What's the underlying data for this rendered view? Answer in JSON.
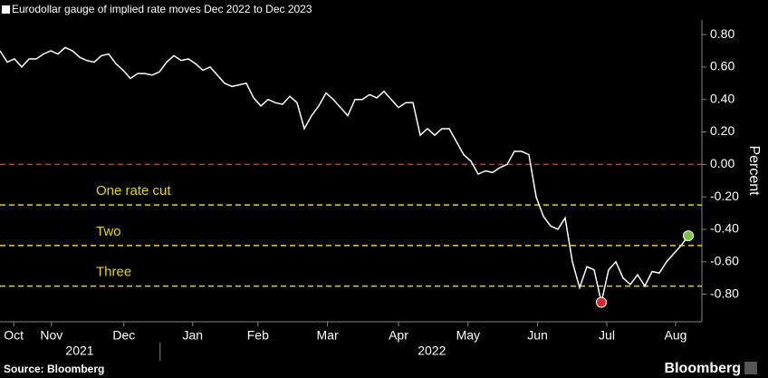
{
  "chart_data": {
    "type": "line",
    "title": "Eurodollar gauge of implied rate moves Dec 2022 to Dec 2023",
    "y_label": "Percent",
    "source": "Source: Bloomberg",
    "brand": "Bloomberg",
    "color": "#ffffff",
    "values": [
      0.7,
      0.63,
      0.65,
      0.6,
      0.65,
      0.65,
      0.68,
      0.7,
      0.68,
      0.72,
      0.7,
      0.66,
      0.64,
      0.63,
      0.67,
      0.68,
      0.62,
      0.58,
      0.53,
      0.56,
      0.56,
      0.55,
      0.57,
      0.63,
      0.67,
      0.64,
      0.65,
      0.62,
      0.58,
      0.6,
      0.55,
      0.5,
      0.48,
      0.49,
      0.5,
      0.41,
      0.36,
      0.4,
      0.38,
      0.37,
      0.42,
      0.38,
      0.22,
      0.3,
      0.36,
      0.44,
      0.4,
      0.35,
      0.3,
      0.4,
      0.4,
      0.43,
      0.41,
      0.45,
      0.4,
      0.35,
      0.38,
      0.38,
      0.18,
      0.22,
      0.18,
      0.22,
      0.22,
      0.14,
      0.06,
      0.02,
      -0.06,
      -0.04,
      -0.05,
      -0.02,
      0.0,
      0.08,
      0.08,
      0.06,
      -0.2,
      -0.32,
      -0.38,
      -0.4,
      -0.33,
      -0.6,
      -0.76,
      -0.63,
      -0.65,
      -0.85,
      -0.65,
      -0.6,
      -0.7,
      -0.74,
      -0.68,
      -0.75,
      -0.66,
      -0.67,
      -0.6,
      -0.55,
      -0.5,
      -0.44
    ],
    "xlim": [
      0,
      95
    ],
    "xticks": [
      {
        "value": 1.9,
        "label": "Oct"
      },
      {
        "value": 7.1,
        "label": "Nov"
      },
      {
        "value": 17.1,
        "label": "Dec"
      },
      {
        "value": 26.6,
        "label": "Jan"
      },
      {
        "value": 35.6,
        "label": "Feb"
      },
      {
        "value": 45.2,
        "label": "Mar"
      },
      {
        "value": 55,
        "label": "Apr"
      },
      {
        "value": 64.6,
        "label": "May"
      },
      {
        "value": 74.2,
        "label": "Jun"
      },
      {
        "value": 83.75,
        "label": "Jul"
      },
      {
        "value": 93.25,
        "label": "Aug"
      }
    ],
    "year_labels": [
      {
        "value": 11,
        "label": "2021"
      },
      {
        "value": 59.6,
        "label": "2022"
      }
    ],
    "year_divider": 22.1,
    "ylim": [
      -0.97,
      0.89
    ],
    "yticks": [
      {
        "value": 0.8,
        "label": "0.80"
      },
      {
        "value": 0.6,
        "label": "0.60"
      },
      {
        "value": 0.4,
        "label": "0.40"
      },
      {
        "value": 0.2,
        "label": "0.20"
      },
      {
        "value": 0,
        "label": "0.00"
      },
      {
        "value": -0.2,
        "label": "-0.20"
      },
      {
        "value": -0.4,
        "label": "-0.40"
      },
      {
        "value": -0.6,
        "label": "-0.60"
      },
      {
        "value": -0.8,
        "label": "-0.80"
      }
    ],
    "reference_lines": [
      {
        "value": 0,
        "color": "#e0302a"
      },
      {
        "value": -0.25,
        "color": "#e6d600",
        "label": "One rate cut"
      },
      {
        "value": -0.5,
        "color": "#e6d600",
        "label": "Two"
      },
      {
        "value": -0.75,
        "color": "#e6d600",
        "label": "Three"
      }
    ],
    "min_marker_color": "#d9262b",
    "last_marker_color": "#7cc243"
  }
}
